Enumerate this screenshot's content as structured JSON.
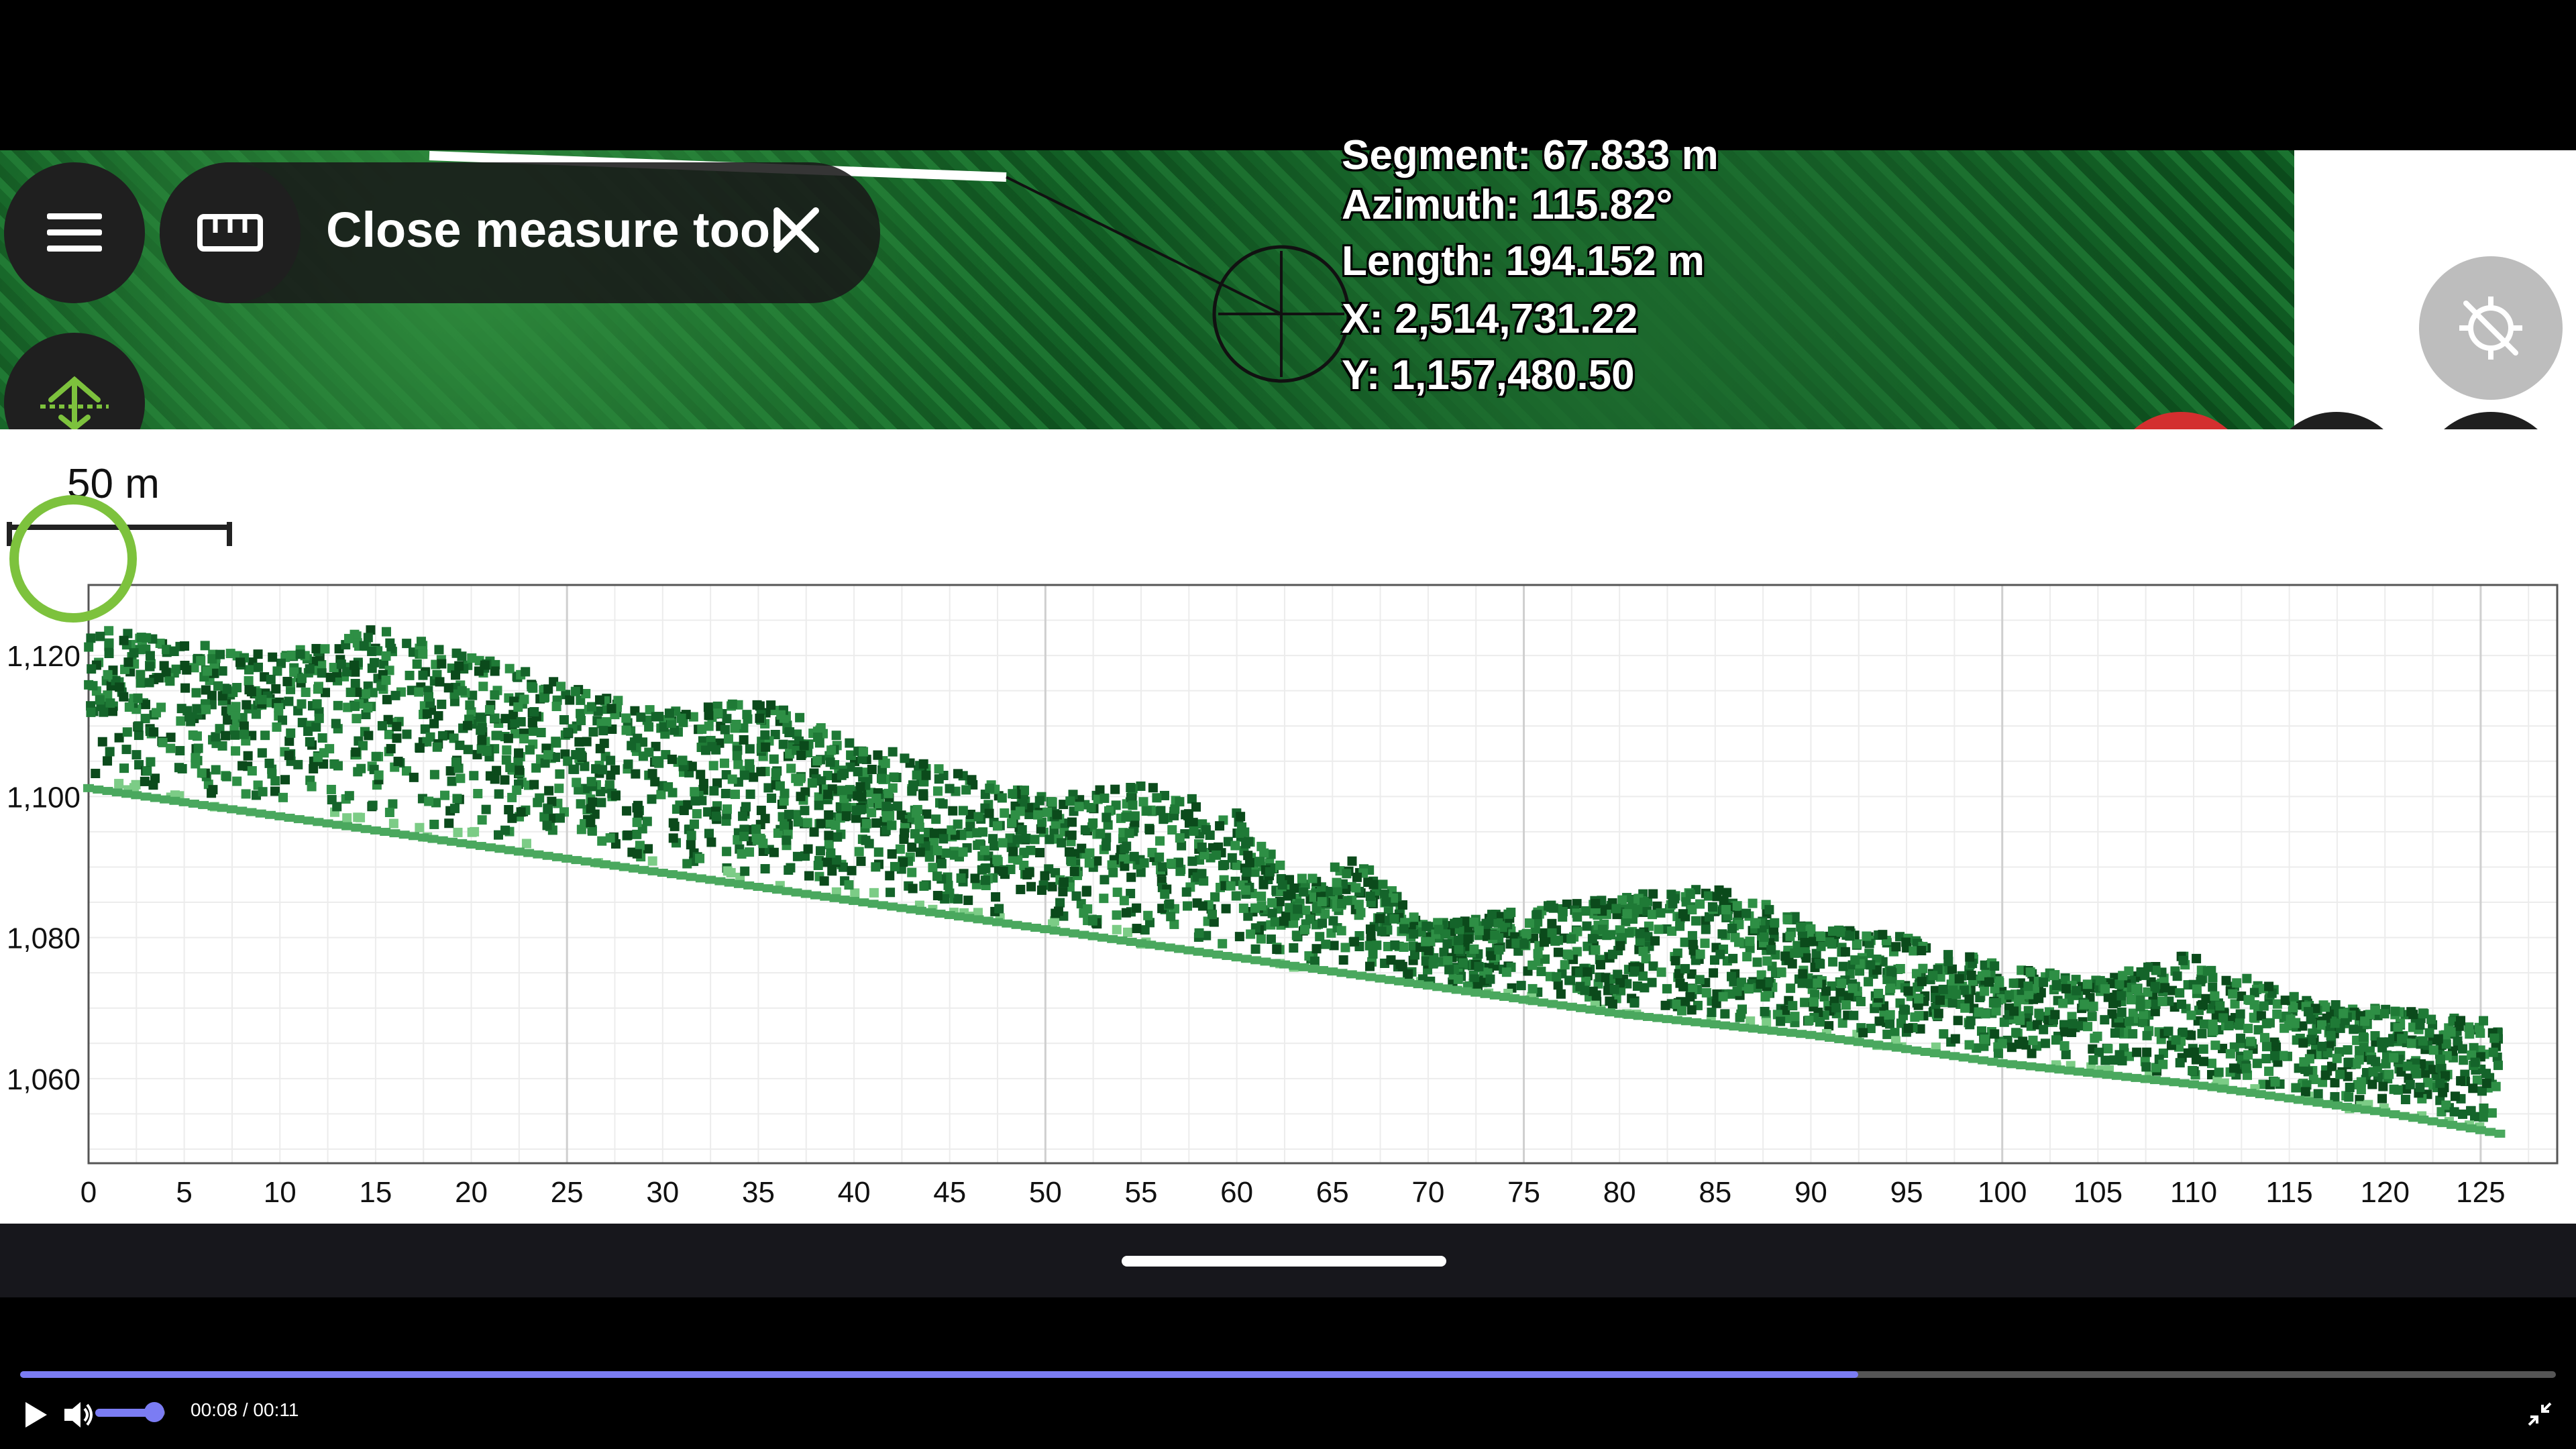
{
  "map": {
    "info": {
      "segment": "Segment: 67.833 m",
      "azimuth": "Azimuth: 115.82°",
      "length": "Length: 194.152 m",
      "x": "X: 2,514,731.22",
      "y": "Y: 1,157,480.50"
    },
    "scale_label": "50 m"
  },
  "toolbar": {
    "menu_icon": "hamburger-menu-icon",
    "ruler_icon": "ruler-icon",
    "close_measure_label": "Close measure tool",
    "close_icon": "close-icon",
    "profile_icon": "elevation-profile-icon"
  },
  "controls": {
    "gps_icon": "gps-off-icon",
    "cancel_icon": "close-icon",
    "zoom_out_icon": "zoom-out-icon",
    "zoom_in_icon": "zoom-in-icon",
    "cancel_color": "#d32f2f",
    "accent_color": "#7dc23d"
  },
  "chart_data": {
    "type": "scatter",
    "title": "",
    "xlabel": "",
    "ylabel": "",
    "xlim": [
      0,
      129
    ],
    "ylim": [
      1048,
      1130
    ],
    "x_ticks": [
      0,
      5,
      10,
      15,
      20,
      25,
      30,
      35,
      40,
      45,
      50,
      55,
      60,
      65,
      70,
      75,
      80,
      85,
      90,
      95,
      100,
      105,
      110,
      115,
      120,
      125
    ],
    "y_ticks": [
      1060,
      1080,
      1100,
      1120
    ],
    "y_tick_labels": [
      "1,060",
      "1,080",
      "1,100",
      "1,120"
    ],
    "grid": true,
    "series": [
      {
        "ground": [
          [
            0,
            1101
          ],
          [
            10,
            1097
          ],
          [
            20,
            1093
          ],
          [
            30,
            1089
          ],
          [
            40,
            1085
          ],
          [
            50,
            1081
          ],
          [
            60,
            1077
          ],
          [
            70,
            1073
          ],
          [
            80,
            1069
          ],
          [
            90,
            1066
          ],
          [
            100,
            1062
          ],
          [
            110,
            1059
          ],
          [
            120,
            1055
          ],
          [
            126,
            1052
          ]
        ],
        "canopy_top": [
          [
            0,
            1124
          ],
          [
            5,
            1122
          ],
          [
            10,
            1120
          ],
          [
            15,
            1124
          ],
          [
            20,
            1120
          ],
          [
            25,
            1116
          ],
          [
            30,
            1112
          ],
          [
            35,
            1114
          ],
          [
            40,
            1108
          ],
          [
            45,
            1104
          ],
          [
            50,
            1100
          ],
          [
            55,
            1102
          ],
          [
            60,
            1098
          ],
          [
            63,
            1088
          ],
          [
            66,
            1092
          ],
          [
            70,
            1082
          ],
          [
            75,
            1084
          ],
          [
            80,
            1086
          ],
          [
            85,
            1088
          ],
          [
            90,
            1082
          ],
          [
            95,
            1080
          ],
          [
            100,
            1076
          ],
          [
            105,
            1074
          ],
          [
            110,
            1078
          ],
          [
            115,
            1072
          ],
          [
            120,
            1070
          ],
          [
            126,
            1068
          ]
        ],
        "colors": [
          "#0b4a1b",
          "#14642a",
          "#1f7a36",
          "#2e8f45",
          "#4aa85e",
          "#7ccc86"
        ]
      }
    ]
  },
  "video": {
    "current_time": "00:08",
    "separator": "/",
    "duration": "00:11",
    "progress": 0.7248,
    "volume": 0.85,
    "accent_color": "#7b7cf3"
  }
}
